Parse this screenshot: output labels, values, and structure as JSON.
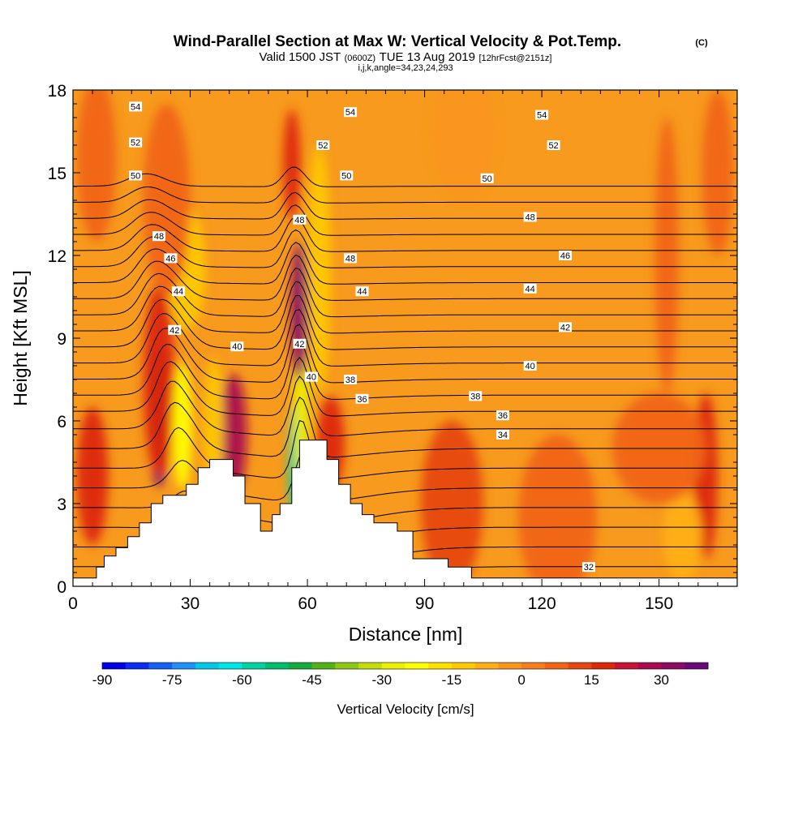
{
  "chart_data": {
    "type": "heatmap",
    "title": "Wind-Parallel Section at Max W: Vertical Velocity & Pot.Temp.",
    "copyright": "(C)",
    "subtitle": {
      "valid_local": "Valid 1500 JST",
      "utc": "(0600Z)",
      "date": "TUE 13 Aug 2019",
      "forecast": "[12hrFcst@2151z]",
      "indices": "i,j,k,angle=34,23,24,293"
    },
    "xlabel": "Distance [nm]",
    "ylabel": "Height [Kft MSL]",
    "xlim": [
      0,
      170
    ],
    "ylim": [
      0,
      18
    ],
    "x_ticks": [
      0,
      30,
      60,
      90,
      120,
      150
    ],
    "y_ticks": [
      0,
      3,
      6,
      9,
      12,
      15,
      18
    ],
    "colorbar": {
      "label": "Vertical Velocity [cm/s]",
      "min": -90,
      "max": 40,
      "step": 5,
      "tick_labels": [
        -90,
        -75,
        -60,
        -45,
        -30,
        -15,
        0,
        15,
        30
      ],
      "colors": [
        "#0000e6",
        "#0a2ef0",
        "#1560f5",
        "#1e90ff",
        "#00c8e6",
        "#00e6e6",
        "#00d2a0",
        "#00be6e",
        "#14aa3c",
        "#50b414",
        "#8cc814",
        "#c3dc0a",
        "#ebf000",
        "#ffff00",
        "#ffe100",
        "#ffc800",
        "#ffaf14",
        "#fa961e",
        "#f57d1e",
        "#f06414",
        "#e6460f",
        "#dc280a",
        "#c81432",
        "#aa0a50",
        "#8c0a64",
        "#690a78"
      ]
    },
    "terrain": [
      [
        0,
        0
      ],
      [
        0,
        0.3
      ],
      [
        6,
        0.3
      ],
      [
        6,
        0.7
      ],
      [
        8,
        0.7
      ],
      [
        8,
        1.1
      ],
      [
        11,
        1.1
      ],
      [
        11,
        1.4
      ],
      [
        14,
        1.4
      ],
      [
        14,
        1.8
      ],
      [
        17,
        1.8
      ],
      [
        17,
        2.3
      ],
      [
        20,
        2.3
      ],
      [
        20,
        3.0
      ],
      [
        23,
        3.0
      ],
      [
        23,
        3.3
      ],
      [
        29,
        3.3
      ],
      [
        29,
        3.7
      ],
      [
        32,
        3.7
      ],
      [
        32,
        4.3
      ],
      [
        35,
        4.3
      ],
      [
        35,
        4.6
      ],
      [
        41,
        4.6
      ],
      [
        41,
        4.0
      ],
      [
        44,
        4.0
      ],
      [
        44,
        3.0
      ],
      [
        48,
        3.0
      ],
      [
        48,
        2.0
      ],
      [
        51,
        2.0
      ],
      [
        51,
        2.6
      ],
      [
        53,
        2.6
      ],
      [
        53,
        3.0
      ],
      [
        56,
        3.0
      ],
      [
        56,
        4.3
      ],
      [
        58,
        4.3
      ],
      [
        58,
        5.3
      ],
      [
        62,
        5.3
      ],
      [
        62,
        5.3
      ],
      [
        65,
        5.3
      ],
      [
        65,
        4.6
      ],
      [
        68,
        4.6
      ],
      [
        68,
        3.7
      ],
      [
        71,
        3.7
      ],
      [
        71,
        3.0
      ],
      [
        74,
        3.0
      ],
      [
        74,
        2.6
      ],
      [
        77,
        2.6
      ],
      [
        77,
        2.3
      ],
      [
        83,
        2.3
      ],
      [
        83,
        2.0
      ],
      [
        87,
        2.0
      ],
      [
        87,
        1.0
      ],
      [
        96,
        1.0
      ],
      [
        96,
        0.7
      ],
      [
        102,
        0.7
      ],
      [
        102,
        0.3
      ],
      [
        108,
        0.3
      ],
      [
        108,
        0.3
      ],
      [
        170,
        0.3
      ],
      [
        170,
        0
      ]
    ],
    "velocity_blobs": [
      {
        "x": 22,
        "y": 6.2,
        "w": 2.5,
        "h": 2.6,
        "value": 35
      },
      {
        "x": 22,
        "y": 7.5,
        "w": 4,
        "h": 3.5,
        "value": 15
      },
      {
        "x": 28,
        "y": 5.8,
        "w": 2.5,
        "h": 2.3,
        "value": -25
      },
      {
        "x": 41,
        "y": 5.5,
        "w": 3.5,
        "h": 2.2,
        "value": 25
      },
      {
        "x": 36,
        "y": 5.8,
        "w": 2.5,
        "h": 2.5,
        "value": -15
      },
      {
        "x": 57,
        "y": 4.5,
        "w": 1.8,
        "h": 2.2,
        "value": -60
      },
      {
        "x": 58.5,
        "y": 6.5,
        "w": 2,
        "h": 2.5,
        "value": -30
      },
      {
        "x": 58,
        "y": 10.0,
        "w": 2.2,
        "h": 2.5,
        "value": 30
      },
      {
        "x": 56,
        "y": 15.3,
        "w": 2.2,
        "h": 2.0,
        "value": 15
      },
      {
        "x": 63,
        "y": 11.5,
        "w": 3,
        "h": 4.5,
        "value": -15
      },
      {
        "x": 29,
        "y": 11.5,
        "w": 5,
        "h": 2.2,
        "value": -15
      },
      {
        "x": 66,
        "y": 5.2,
        "w": 3.5,
        "h": 1.7,
        "value": 15
      },
      {
        "x": 5,
        "y": 4.0,
        "w": 4,
        "h": 2.5,
        "value": 15
      },
      {
        "x": 24,
        "y": 14.0,
        "w": 6,
        "h": 3.5,
        "value": 5
      },
      {
        "x": 6,
        "y": 15.5,
        "w": 5,
        "h": 3.0,
        "value": 5
      },
      {
        "x": 165,
        "y": 15.0,
        "w": 4,
        "h": 3.0,
        "value": 5
      },
      {
        "x": 152,
        "y": 12.0,
        "w": 3,
        "h": 5.0,
        "value": 5
      },
      {
        "x": 162,
        "y": 4.0,
        "w": 3,
        "h": 3.0,
        "value": 15
      },
      {
        "x": 124,
        "y": 2.5,
        "w": 10,
        "h": 3.0,
        "value": 5
      },
      {
        "x": 97,
        "y": 3.0,
        "w": 8,
        "h": 3.0,
        "value": 10
      },
      {
        "x": 156,
        "y": 1.8,
        "w": 5,
        "h": 1.6,
        "value": -10
      },
      {
        "x": 100,
        "y": 16.5,
        "w": 8,
        "h": 2.5,
        "value": -5
      },
      {
        "x": 150,
        "y": 5.0,
        "w": 12,
        "h": 2.0,
        "value": 5
      }
    ],
    "contour_levels": [
      32,
      33,
      34,
      35,
      36,
      37,
      38,
      39,
      40,
      41,
      42,
      43,
      44,
      45,
      46,
      47,
      48,
      49,
      50,
      51,
      52,
      53,
      54,
      55
    ],
    "contour_labels": [
      {
        "text": "54",
        "x": 16,
        "y": 17.4
      },
      {
        "text": "52",
        "x": 16,
        "y": 16.1
      },
      {
        "text": "50",
        "x": 16,
        "y": 14.9
      },
      {
        "text": "48",
        "x": 22,
        "y": 12.7
      },
      {
        "text": "46",
        "x": 25,
        "y": 11.9
      },
      {
        "text": "44",
        "x": 27,
        "y": 10.7
      },
      {
        "text": "42",
        "x": 26,
        "y": 9.3
      },
      {
        "text": "40",
        "x": 42,
        "y": 8.7
      },
      {
        "text": "54",
        "x": 71,
        "y": 17.2
      },
      {
        "text": "52",
        "x": 64,
        "y": 16.0
      },
      {
        "text": "50",
        "x": 70,
        "y": 14.9
      },
      {
        "text": "48",
        "x": 58,
        "y": 13.3
      },
      {
        "text": "48",
        "x": 71,
        "y": 11.9
      },
      {
        "text": "44",
        "x": 74,
        "y": 10.7
      },
      {
        "text": "42",
        "x": 58,
        "y": 8.8
      },
      {
        "text": "40",
        "x": 61,
        "y": 7.6
      },
      {
        "text": "38",
        "x": 71,
        "y": 7.5
      },
      {
        "text": "36",
        "x": 74,
        "y": 6.8
      },
      {
        "text": "54",
        "x": 120,
        "y": 17.1
      },
      {
        "text": "52",
        "x": 123,
        "y": 16.0
      },
      {
        "text": "50",
        "x": 106,
        "y": 14.8
      },
      {
        "text": "48",
        "x": 117,
        "y": 13.4
      },
      {
        "text": "46",
        "x": 126,
        "y": 12.0
      },
      {
        "text": "44",
        "x": 117,
        "y": 10.8
      },
      {
        "text": "42",
        "x": 126,
        "y": 9.4
      },
      {
        "text": "40",
        "x": 117,
        "y": 8.0
      },
      {
        "text": "38",
        "x": 103,
        "y": 6.9
      },
      {
        "text": "36",
        "x": 110,
        "y": 6.2
      },
      {
        "text": "34",
        "x": 110,
        "y": 5.5
      },
      {
        "text": "32",
        "x": 132,
        "y": 0.7
      }
    ]
  }
}
